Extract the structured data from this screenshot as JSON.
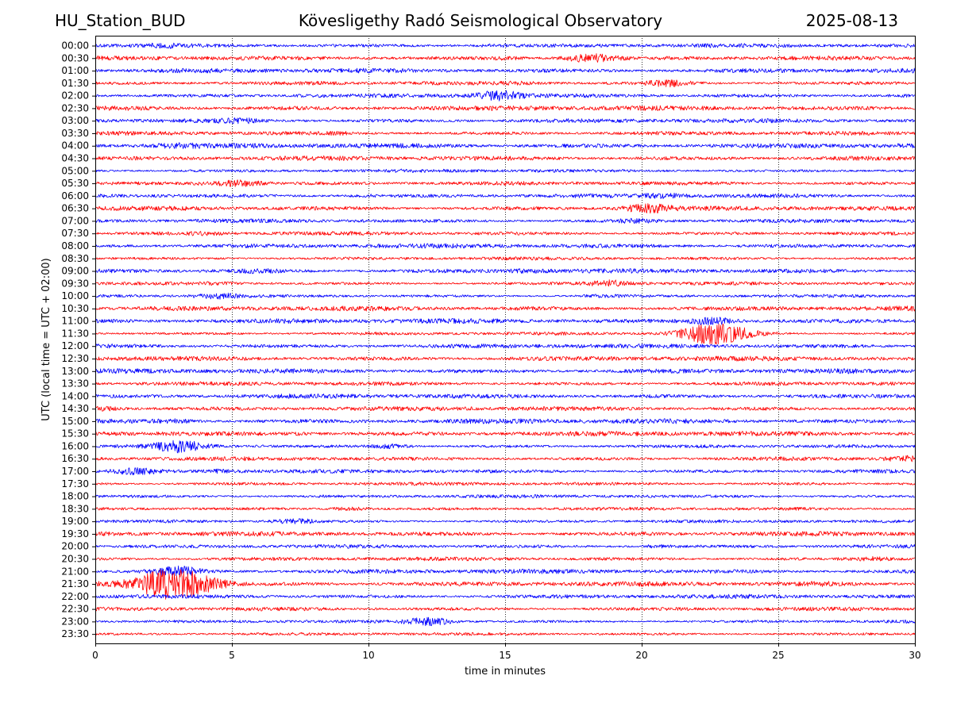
{
  "header": {
    "station": "HU_Station_BUD",
    "observatory": "Kövesligethy Radó Seismological Observatory",
    "date": "2025-08-13"
  },
  "colors": {
    "trace_a": "#0000ff",
    "trace_b": "#ff0000",
    "grid": "#000000",
    "frame": "#000000"
  },
  "chart_data": {
    "type": "line",
    "title": "Kövesligethy Radó Seismological Observatory",
    "xlabel": "time in minutes",
    "ylabel": "UTC (local time = UTC + 02:00)",
    "xlim": [
      0,
      30
    ],
    "xticks": [
      0,
      5,
      10,
      15,
      20,
      25,
      30
    ],
    "grid": "vertical dotted",
    "legend": "none",
    "rows": [
      {
        "label": "00:00",
        "events": [
          {
            "t": 2.5,
            "a": 1.3
          },
          {
            "t": 14.6,
            "a": 1.2
          }
        ]
      },
      {
        "label": "00:30",
        "events": [
          {
            "t": 18.1,
            "a": 2.2
          },
          {
            "t": 15.0,
            "a": 1.3
          }
        ]
      },
      {
        "label": "01:00",
        "events": []
      },
      {
        "label": "01:30",
        "events": [
          {
            "t": 21.0,
            "a": 1.8
          },
          {
            "t": 15.5,
            "a": 1.2
          }
        ]
      },
      {
        "label": "02:00",
        "events": [
          {
            "t": 14.8,
            "a": 2.2
          },
          {
            "t": 8.0,
            "a": 1.2
          }
        ]
      },
      {
        "label": "02:30",
        "events": []
      },
      {
        "label": "03:00",
        "events": [
          {
            "t": 5.3,
            "a": 1.5
          }
        ]
      },
      {
        "label": "03:30",
        "events": [
          {
            "t": 9.0,
            "a": 1.2
          }
        ]
      },
      {
        "label": "04:00",
        "events": [
          {
            "t": 3.0,
            "a": 1.3
          }
        ]
      },
      {
        "label": "04:30",
        "events": []
      },
      {
        "label": "05:00",
        "events": []
      },
      {
        "label": "05:30",
        "events": [
          {
            "t": 5.3,
            "a": 1.9
          },
          {
            "t": 4.0,
            "a": 1.3
          }
        ]
      },
      {
        "label": "06:00",
        "events": [
          {
            "t": 20.8,
            "a": 1.5
          },
          {
            "t": 10.0,
            "a": 1.2
          }
        ]
      },
      {
        "label": "06:30",
        "events": [
          {
            "t": 20.2,
            "a": 2.0
          }
        ]
      },
      {
        "label": "07:00",
        "events": [
          {
            "t": 19.8,
            "a": 1.4
          }
        ]
      },
      {
        "label": "07:30",
        "events": [
          {
            "t": 4.0,
            "a": 1.3
          }
        ]
      },
      {
        "label": "08:00",
        "events": []
      },
      {
        "label": "08:30",
        "events": []
      },
      {
        "label": "09:00",
        "events": [
          {
            "t": 6.0,
            "a": 1.3
          },
          {
            "t": 15.8,
            "a": 1.3
          }
        ]
      },
      {
        "label": "09:30",
        "events": [
          {
            "t": 18.8,
            "a": 1.8
          },
          {
            "t": 4.5,
            "a": 1.2
          }
        ]
      },
      {
        "label": "10:00",
        "events": [
          {
            "t": 4.5,
            "a": 1.6
          },
          {
            "t": 18.5,
            "a": 1.3
          }
        ]
      },
      {
        "label": "10:30",
        "events": []
      },
      {
        "label": "11:00",
        "events": [
          {
            "t": 22.6,
            "a": 2.0
          }
        ]
      },
      {
        "label": "11:30",
        "events": [
          {
            "t": 22.6,
            "a": 4.0
          },
          {
            "t": 24.0,
            "a": 1.3
          }
        ]
      },
      {
        "label": "12:00",
        "events": []
      },
      {
        "label": "12:30",
        "events": []
      },
      {
        "label": "13:00",
        "events": []
      },
      {
        "label": "13:30",
        "events": []
      },
      {
        "label": "14:00",
        "events": []
      },
      {
        "label": "14:30",
        "events": [
          {
            "t": 0.2,
            "a": 1.5
          }
        ]
      },
      {
        "label": "15:00",
        "events": [
          {
            "t": 3.0,
            "a": 1.3
          }
        ]
      },
      {
        "label": "15:30",
        "events": [
          {
            "t": 7.5,
            "a": 1.2
          }
        ]
      },
      {
        "label": "16:00",
        "events": [
          {
            "t": 3.1,
            "a": 2.6
          },
          {
            "t": 10.8,
            "a": 1.5
          }
        ]
      },
      {
        "label": "16:30",
        "events": [
          {
            "t": 29.6,
            "a": 1.5
          }
        ]
      },
      {
        "label": "17:00",
        "events": [
          {
            "t": 1.5,
            "a": 1.7
          },
          {
            "t": 4.5,
            "a": 1.3
          }
        ]
      },
      {
        "label": "17:30",
        "events": []
      },
      {
        "label": "18:00",
        "events": []
      },
      {
        "label": "18:30",
        "events": [
          {
            "t": 9.3,
            "a": 1.4
          }
        ]
      },
      {
        "label": "19:00",
        "events": [
          {
            "t": 7.3,
            "a": 1.6
          }
        ]
      },
      {
        "label": "19:30",
        "events": []
      },
      {
        "label": "20:00",
        "events": [
          {
            "t": 20.5,
            "a": 1.3
          }
        ]
      },
      {
        "label": "20:30",
        "events": [
          {
            "t": 28.5,
            "a": 1.4
          }
        ]
      },
      {
        "label": "21:00",
        "events": [
          {
            "t": 3.0,
            "a": 2.2
          }
        ]
      },
      {
        "label": "21:30",
        "events": [
          {
            "t": 2.9,
            "a": 5.5
          },
          {
            "t": 26.5,
            "a": 1.3
          }
        ]
      },
      {
        "label": "22:00",
        "events": []
      },
      {
        "label": "22:30",
        "events": []
      },
      {
        "label": "23:00",
        "events": [
          {
            "t": 12.2,
            "a": 2.0
          }
        ]
      },
      {
        "label": "23:30",
        "events": []
      }
    ]
  }
}
